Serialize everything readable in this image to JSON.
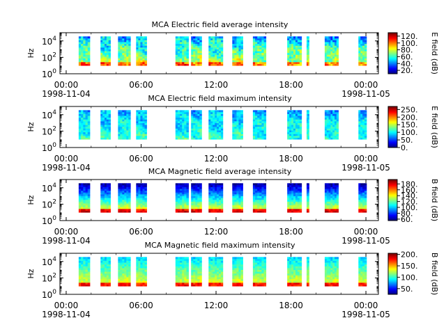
{
  "chart_data": [
    {
      "type": "heatmap",
      "title": "MCA  Electric field average intensity",
      "ylabel": "Hz",
      "cbar_label": "E field (dB)",
      "cbar_ticks": [
        "20.",
        "40.",
        "60.",
        "80.",
        "100.",
        "120."
      ],
      "cbar_range": [
        10,
        130
      ],
      "scheme": "e_avg"
    },
    {
      "type": "heatmap",
      "title": "MCA  Electric field maximum intensity",
      "ylabel": "Hz",
      "cbar_label": "E field (dB)",
      "cbar_ticks": [
        "0.",
        "50.",
        "100.",
        "150.",
        "200.",
        "250."
      ],
      "cbar_range": [
        0,
        270
      ],
      "scheme": "e_max"
    },
    {
      "type": "heatmap",
      "title": "MCA  Magnetic field average intensity",
      "ylabel": "Hz",
      "cbar_label": "B field (dB)",
      "cbar_ticks": [
        "60.",
        "80.",
        "100.",
        "120.",
        "140.",
        "160.",
        "180."
      ],
      "cbar_range": [
        55,
        195
      ],
      "scheme": "b_avg"
    },
    {
      "type": "heatmap",
      "title": "MCA  Magnetic field maximum intensity",
      "ylabel": "Hz",
      "cbar_label": "B field (dB)",
      "cbar_ticks": [
        "50.",
        "100.",
        "150.",
        "200."
      ],
      "cbar_range": [
        25,
        205
      ],
      "scheme": "b_max"
    }
  ],
  "x_axis": {
    "range_hours": [
      -0.5,
      25.0
    ],
    "ticks": [
      {
        "hour": 0,
        "label": "00:00",
        "date": "1998-11-04"
      },
      {
        "hour": 6,
        "label": "06:00",
        "date": ""
      },
      {
        "hour": 12,
        "label": "12:00",
        "date": ""
      },
      {
        "hour": 18,
        "label": "18:00",
        "date": ""
      },
      {
        "hour": 24,
        "label": "00:00",
        "date": "1998-11-05"
      }
    ]
  },
  "y_axis": {
    "scale": "log",
    "range_hz": [
      1,
      100000
    ],
    "ticks": [
      {
        "exp": 0,
        "base": "10",
        "sup": "0"
      },
      {
        "exp": 2,
        "base": "10",
        "sup": "2"
      },
      {
        "exp": 4,
        "base": "10",
        "sup": "4"
      }
    ]
  },
  "coverage_hours": [
    [
      1.0,
      1.9
    ],
    [
      2.75,
      3.55
    ],
    [
      4.15,
      5.15
    ],
    [
      5.6,
      6.45
    ],
    [
      8.75,
      9.8
    ],
    [
      10.0,
      10.85
    ],
    [
      11.4,
      12.55
    ],
    [
      13.3,
      14.15
    ],
    [
      14.95,
      16.0
    ],
    [
      17.7,
      18.85
    ],
    [
      19.25,
      19.45
    ],
    [
      20.7,
      21.8
    ],
    [
      23.4,
      24.05
    ]
  ],
  "frequency_range_exp": [
    1.0,
    4.55
  ]
}
